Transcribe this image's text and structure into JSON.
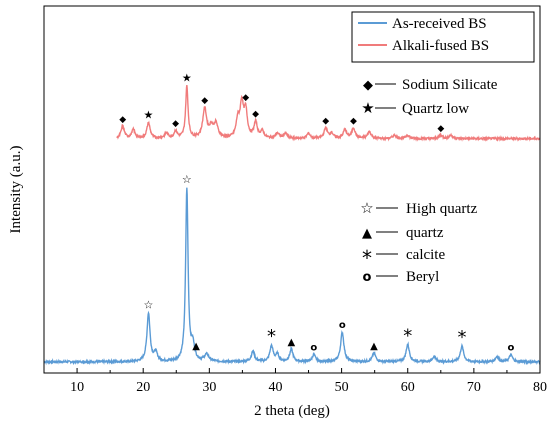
{
  "chart_data": {
    "type": "line",
    "title": "",
    "xlabel": "2 theta (deg)",
    "ylabel": "Intensity (a.u.)",
    "xlim": [
      5,
      80
    ],
    "x_ticks": [
      10,
      20,
      30,
      40,
      50,
      60,
      70,
      80
    ],
    "y_ticks_shown": false,
    "grid": false,
    "legend": {
      "placement": "top-right",
      "entries": [
        {
          "name": "As-received BS",
          "color": "#5b9bd5"
        },
        {
          "name": "Alkali-fused BS",
          "color": "#f07b7b"
        }
      ]
    },
    "series": [
      {
        "name": "As-received BS",
        "color": "#5b9bd5",
        "baseline": 3,
        "noise": 0.6,
        "range": [
          5,
          80
        ],
        "peaks": [
          {
            "x": 20.8,
            "h": 28,
            "w": 0.28
          },
          {
            "x": 21.9,
            "h": 5,
            "w": 0.3
          },
          {
            "x": 26.6,
            "h": 100,
            "w": 0.22
          },
          {
            "x": 27.5,
            "h": 9,
            "w": 0.3
          },
          {
            "x": 29.6,
            "h": 4,
            "w": 0.4
          },
          {
            "x": 36.6,
            "h": 6,
            "w": 0.3
          },
          {
            "x": 39.4,
            "h": 9,
            "w": 0.3
          },
          {
            "x": 40.3,
            "h": 4,
            "w": 0.3
          },
          {
            "x": 42.4,
            "h": 7,
            "w": 0.3
          },
          {
            "x": 45.8,
            "h": 4,
            "w": 0.3
          },
          {
            "x": 50.1,
            "h": 17,
            "w": 0.3
          },
          {
            "x": 54.9,
            "h": 5,
            "w": 0.3
          },
          {
            "x": 60.0,
            "h": 10,
            "w": 0.3
          },
          {
            "x": 64.0,
            "h": 3,
            "w": 0.3
          },
          {
            "x": 68.2,
            "h": 9,
            "w": 0.3
          },
          {
            "x": 73.5,
            "h": 3,
            "w": 0.3
          },
          {
            "x": 75.6,
            "h": 4,
            "w": 0.3
          }
        ]
      },
      {
        "name": "Alkali-fused BS",
        "color": "#f07b7b",
        "baseline": 132,
        "noise": 0.6,
        "range": [
          16,
          80
        ],
        "peaks": [
          {
            "x": 16.9,
            "h": 7,
            "w": 0.3
          },
          {
            "x": 18.5,
            "h": 5,
            "w": 0.3
          },
          {
            "x": 20.8,
            "h": 9,
            "w": 0.3
          },
          {
            "x": 23.5,
            "h": 3,
            "w": 0.3
          },
          {
            "x": 24.9,
            "h": 4,
            "w": 0.3
          },
          {
            "x": 26.6,
            "h": 30,
            "w": 0.22
          },
          {
            "x": 29.3,
            "h": 17,
            "w": 0.35
          },
          {
            "x": 30.3,
            "h": 6,
            "w": 0.35
          },
          {
            "x": 31.0,
            "h": 8,
            "w": 0.35
          },
          {
            "x": 34.3,
            "h": 10,
            "w": 0.3
          },
          {
            "x": 34.9,
            "h": 19,
            "w": 0.3
          },
          {
            "x": 35.5,
            "h": 15,
            "w": 0.3
          },
          {
            "x": 37.0,
            "h": 9,
            "w": 0.3
          },
          {
            "x": 38.0,
            "h": 4,
            "w": 0.3
          },
          {
            "x": 40.3,
            "h": 3,
            "w": 0.3
          },
          {
            "x": 41.5,
            "h": 3,
            "w": 0.3
          },
          {
            "x": 45.0,
            "h": 3,
            "w": 0.3
          },
          {
            "x": 47.6,
            "h": 6,
            "w": 0.3
          },
          {
            "x": 48.5,
            "h": 3,
            "w": 0.3
          },
          {
            "x": 50.5,
            "h": 5,
            "w": 0.3
          },
          {
            "x": 51.8,
            "h": 6,
            "w": 0.3
          },
          {
            "x": 54.2,
            "h": 4,
            "w": 0.3
          },
          {
            "x": 58.0,
            "h": 2,
            "w": 0.3
          },
          {
            "x": 60.0,
            "h": 2,
            "w": 0.3
          },
          {
            "x": 65.0,
            "h": 2,
            "w": 0.3
          },
          {
            "x": 66.5,
            "h": 2,
            "w": 0.3
          }
        ]
      }
    ],
    "phase_legend_top": [
      {
        "symbol": "◆",
        "label": "Sodium Silicate"
      },
      {
        "symbol": "★",
        "label": "Quartz low"
      }
    ],
    "phase_legend_bottom": [
      {
        "symbol": "☆",
        "label": "High quartz"
      },
      {
        "symbol": "▲",
        "label": "quartz"
      },
      {
        "symbol": "*",
        "label": "calcite"
      },
      {
        "symbol": "o",
        "label": "Beryl"
      }
    ],
    "annotations": [
      {
        "series": 1,
        "x": 16.9,
        "symbol": "◆"
      },
      {
        "series": 1,
        "x": 20.8,
        "symbol": "★"
      },
      {
        "series": 1,
        "x": 24.9,
        "symbol": "◆"
      },
      {
        "series": 1,
        "x": 26.6,
        "symbol": "★"
      },
      {
        "series": 1,
        "x": 29.3,
        "symbol": "◆"
      },
      {
        "series": 1,
        "x": 35.5,
        "symbol": "◆"
      },
      {
        "series": 1,
        "x": 37.0,
        "symbol": "◆"
      },
      {
        "series": 1,
        "x": 47.6,
        "symbol": "◆"
      },
      {
        "series": 1,
        "x": 51.8,
        "symbol": "◆"
      },
      {
        "series": 1,
        "x": 65.0,
        "symbol": "◆"
      },
      {
        "series": 0,
        "x": 20.8,
        "symbol": "☆"
      },
      {
        "series": 0,
        "x": 26.6,
        "symbol": "☆"
      },
      {
        "series": 0,
        "x": 28.0,
        "symbol": "▲"
      },
      {
        "series": 0,
        "x": 39.4,
        "symbol": "*"
      },
      {
        "series": 0,
        "x": 42.4,
        "symbol": "▲"
      },
      {
        "series": 0,
        "x": 45.8,
        "symbol": "o"
      },
      {
        "series": 0,
        "x": 50.1,
        "symbol": "o"
      },
      {
        "series": 0,
        "x": 54.9,
        "symbol": "▲"
      },
      {
        "series": 0,
        "x": 60.0,
        "symbol": "*"
      },
      {
        "series": 0,
        "x": 68.2,
        "symbol": "*"
      },
      {
        "series": 0,
        "x": 75.6,
        "symbol": "o"
      }
    ]
  }
}
